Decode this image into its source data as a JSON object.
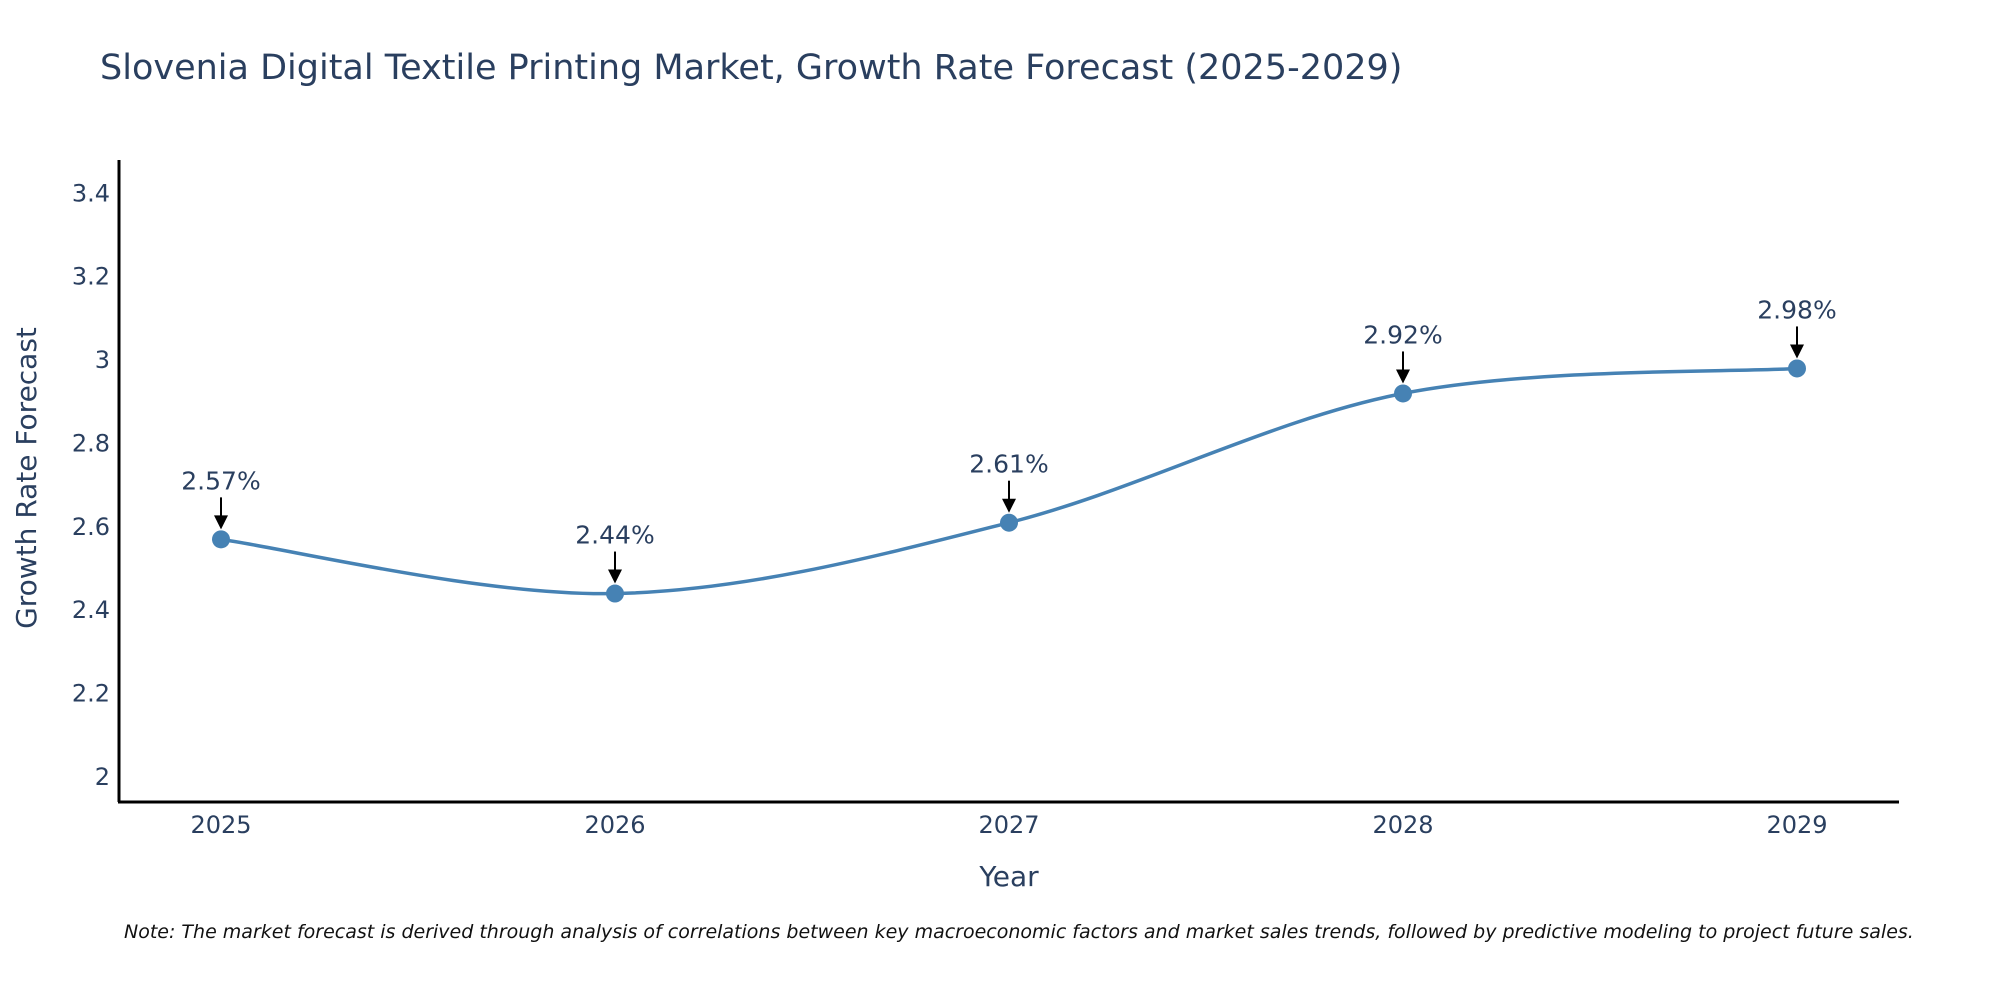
{
  "chart_data": {
    "type": "line",
    "title": "Slovenia Digital Textile Printing Market, Growth Rate Forecast (2025-2029)",
    "xlabel": "Year",
    "ylabel": "Growth Rate Forecast",
    "categories": [
      "2025",
      "2026",
      "2027",
      "2028",
      "2029"
    ],
    "series": [
      {
        "name": "Growth Rate Forecast",
        "values": [
          2.57,
          2.44,
          2.61,
          2.92,
          2.98
        ]
      }
    ],
    "data_labels": [
      "2.57%",
      "2.44%",
      "2.61%",
      "2.92%",
      "2.98%"
    ],
    "y_ticks": [
      "2",
      "2.2",
      "2.4",
      "2.6",
      "2.8",
      "3",
      "3.2",
      "3.4"
    ],
    "ylim": [
      1.94,
      3.48
    ],
    "grid": false,
    "line_color": "#4682b4",
    "marker_color": "#4682b4",
    "note": "Note: The market forecast is derived through analysis of correlations between key macroeconomic factors and market sales trends, followed by predictive modeling to project future sales."
  }
}
